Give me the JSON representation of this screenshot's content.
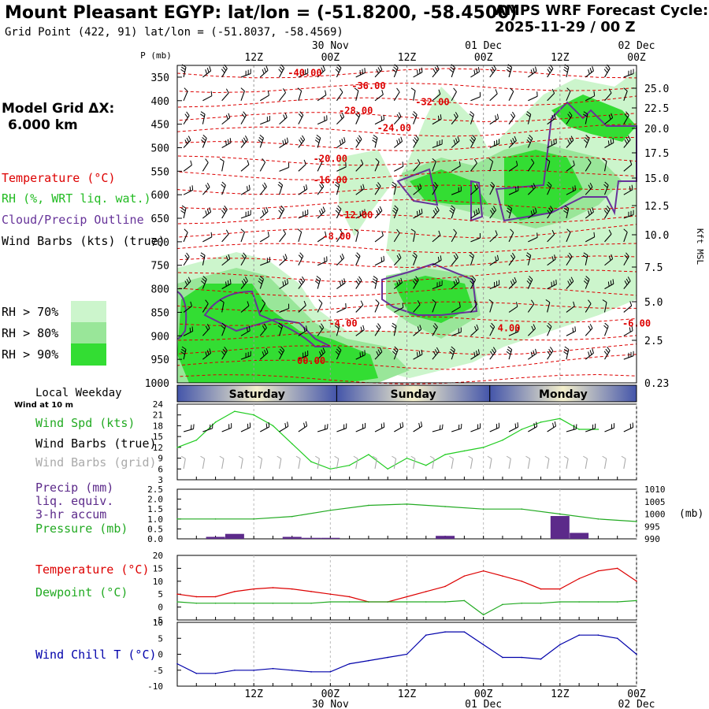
{
  "header": {
    "title": "Mount Pleasant EGYP:  lat/lon = (-51.8200, -58.4500)",
    "grid_point": "Grid Point (422, 91) lat/lon = (-51.8037, -58.4569)",
    "cycle_line1": "AMPS WRF Forecast Cycle:",
    "cycle_line2": "2025-11-29 / 00  Z"
  },
  "model_grid": {
    "label": "Model Grid ΔX:",
    "value": "6.000 km"
  },
  "colors": {
    "temperature": "#dd0000",
    "rh": "#22cc22",
    "cloud": "#663399",
    "wind": "#000000",
    "wind_grid": "#aaaaaa",
    "precip": "#5c2a8a",
    "pressure": "#22aa22",
    "dewpoint": "#22aa22",
    "windchill": "#0000aa",
    "rh70": "#ccf5cc",
    "rh80": "#99e699",
    "rh90": "#33dd33"
  },
  "legend": {
    "temperature": "Temperature (°C)",
    "rh": "RH (%, WRT liq. wat.)",
    "cloud": "Cloud/Precip Outline",
    "wind": "Wind Barbs (kts) (true)",
    "rh_bins": [
      "RH > 70%",
      "RH > 80%",
      "RH > 90%"
    ]
  },
  "time_axis": {
    "hours": [
      0,
      3,
      6,
      9,
      12,
      15,
      18,
      21,
      24,
      27,
      30,
      33,
      36,
      39,
      42,
      45,
      48,
      51,
      54,
      57,
      60,
      63,
      66,
      69,
      72
    ],
    "ticks": [
      {
        "h": 12,
        "label": "12Z",
        "date": ""
      },
      {
        "h": 24,
        "label": "00Z",
        "date": "30 Nov"
      },
      {
        "h": 36,
        "label": "12Z",
        "date": ""
      },
      {
        "h": 48,
        "label": "00Z",
        "date": "01 Dec"
      },
      {
        "h": 60,
        "label": "12Z",
        "date": ""
      },
      {
        "h": 72,
        "label": "00Z",
        "date": "02 Dec"
      }
    ]
  },
  "weekday": {
    "label": "Local Weekday",
    "days": [
      {
        "name": "Saturday",
        "start": 0,
        "end": 25
      },
      {
        "name": "Sunday",
        "start": 25,
        "end": 49
      },
      {
        "name": "Monday",
        "start": 49,
        "end": 72
      }
    ]
  },
  "chart_data": [
    {
      "type": "heatmap",
      "title": "Time-height cross section",
      "ylabel": "P (mb)",
      "ylabel_right": "Kft MSL",
      "y_ticks": [
        350,
        400,
        450,
        500,
        550,
        600,
        650,
        700,
        750,
        800,
        850,
        900,
        950,
        1000
      ],
      "y_right_ticks": [
        "25.0",
        "22.5",
        "20.0",
        "17.5",
        "15.0",
        "12.5",
        "10.0",
        "7.5",
        "5.0",
        "2.5",
        "0.23"
      ],
      "temperature_labels": [
        {
          "text": "-40.00",
          "h": 20,
          "p": 348
        },
        {
          "text": "-36.00",
          "h": 30,
          "p": 375
        },
        {
          "text": "-32.00",
          "h": 40,
          "p": 410
        },
        {
          "text": "-28.00",
          "h": 28,
          "p": 428
        },
        {
          "text": "-24.00",
          "h": 34,
          "p": 465
        },
        {
          "text": "-20.00",
          "h": 24,
          "p": 530
        },
        {
          "text": "-16.00",
          "h": 24,
          "p": 575
        },
        {
          "text": "-12.00",
          "h": 28,
          "p": 650
        },
        {
          "text": "-8.00",
          "h": 25,
          "p": 695
        },
        {
          "text": "-4.00",
          "h": 26,
          "p": 880
        },
        {
          "text": "-6.00",
          "h": 72,
          "p": 880
        },
        {
          "text": "00.00",
          "h": 21,
          "p": 960
        },
        {
          "text": "4.00",
          "h": 52,
          "p": 890
        }
      ]
    },
    {
      "type": "line",
      "title": "Wind Spd (kts)",
      "labels": [
        "Wind at 10 m",
        "Wind Spd (kts)",
        "Wind Barbs (true)",
        "Wind Barbs (grid)"
      ],
      "ylim": [
        3,
        24
      ],
      "y_ticks": [
        3,
        6,
        9,
        12,
        15,
        18,
        21,
        24
      ],
      "series": [
        {
          "name": "Wind Spd (kts)",
          "values": [
            12,
            14,
            19,
            22,
            21,
            18,
            13,
            8,
            6,
            7,
            10,
            6,
            9,
            7,
            10,
            11,
            12,
            14,
            17,
            19,
            20,
            17,
            17
          ]
        }
      ],
      "x": [
        0,
        3,
        6,
        9,
        12,
        15,
        18,
        21,
        24,
        27,
        30,
        33,
        36,
        39,
        42,
        45,
        48,
        51,
        54,
        57,
        60,
        63,
        66
      ]
    },
    {
      "type": "bar",
      "title": "Precip (mm) liq. equiv. 3-hr accum / Pressure (mb)",
      "labels": [
        "Precip (mm)",
        "liq. equiv.",
        "3-hr accum",
        "Pressure (mb)"
      ],
      "ylim_left": [
        0,
        2.5
      ],
      "y_ticks_left": [
        "0.0",
        "0.5",
        "1.0",
        "1.5",
        "2.0",
        "2.5"
      ],
      "y_ticks_right": [
        "990",
        "995",
        "1000",
        "1005",
        "1010"
      ],
      "ylabel_right": "(mb)",
      "precip": {
        "x": [
          6,
          9,
          12,
          15,
          18,
          21,
          24,
          27,
          30,
          33,
          36,
          39,
          42,
          45,
          48,
          51,
          54,
          57,
          60,
          63,
          66,
          69,
          72
        ],
        "values": [
          0.1,
          0.25,
          0,
          0,
          0.1,
          0.05,
          0.05,
          0,
          0,
          0,
          0,
          0,
          0.15,
          0,
          0,
          0,
          0,
          0,
          1.15,
          0.3,
          0,
          0,
          0
        ]
      },
      "pressure": {
        "x": [
          0,
          6,
          12,
          18,
          24,
          30,
          36,
          42,
          48,
          54,
          60,
          66,
          72
        ],
        "values": [
          998,
          998,
          998,
          999,
          1001.5,
          1003.5,
          1004,
          1003,
          1002,
          1002,
          1000,
          998,
          997
        ]
      }
    },
    {
      "type": "line",
      "title": "Temperature / Dewpoint",
      "ylim": [
        -5,
        20
      ],
      "y_ticks": [
        -5,
        0,
        5,
        10,
        15,
        20
      ],
      "series": [
        {
          "name": "Temperature (°C)",
          "x": [
            0,
            3,
            6,
            9,
            12,
            15,
            18,
            21,
            24,
            27,
            30,
            33,
            36,
            39,
            42,
            45,
            48,
            51,
            54,
            57,
            60,
            63,
            66,
            69,
            72
          ],
          "values": [
            5,
            4,
            4,
            6,
            7,
            7.5,
            7,
            6,
            5,
            4,
            2,
            2,
            4,
            6,
            8,
            12,
            14,
            12,
            10,
            7,
            7,
            11,
            14,
            15,
            10
          ]
        },
        {
          "name": "Dewpoint (°C)",
          "x": [
            0,
            3,
            6,
            9,
            12,
            15,
            18,
            21,
            24,
            27,
            30,
            33,
            36,
            39,
            42,
            45,
            48,
            51,
            54,
            57,
            60,
            63,
            66,
            69,
            72
          ],
          "values": [
            2,
            1.5,
            1.5,
            1.5,
            1.5,
            1.5,
            1.5,
            1.5,
            2,
            2,
            2,
            2,
            2,
            2,
            2,
            2.5,
            -3,
            1,
            1.5,
            1.5,
            2,
            2,
            2,
            2,
            2.5
          ]
        }
      ]
    },
    {
      "type": "line",
      "title": "Wind Chill T (°C)",
      "ylim": [
        -10,
        10
      ],
      "y_ticks": [
        -10,
        -5,
        0,
        5,
        10
      ],
      "series": [
        {
          "name": "Wind Chill T (°C)",
          "x": [
            0,
            3,
            6,
            9,
            12,
            15,
            18,
            21,
            24,
            27,
            30,
            33,
            36,
            39,
            42,
            45,
            48,
            51,
            54,
            57,
            60,
            63,
            66,
            69,
            72
          ],
          "values": [
            -3,
            -6,
            -6,
            -5,
            -5,
            -4.5,
            -5,
            -5.5,
            -5.5,
            -3,
            -2,
            -1,
            0,
            6,
            7,
            7,
            3,
            -1,
            -1,
            -1.5,
            3,
            6,
            6,
            5,
            0
          ]
        }
      ]
    }
  ]
}
